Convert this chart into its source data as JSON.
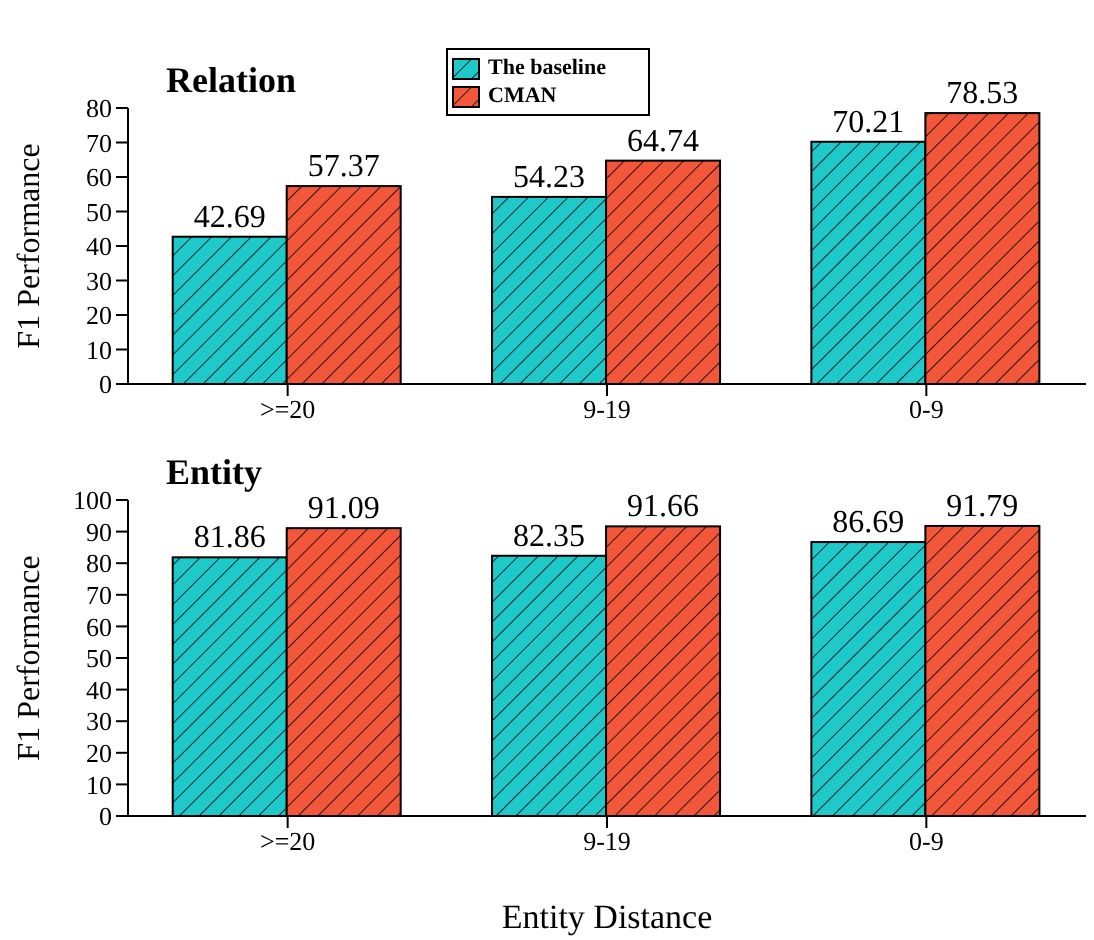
{
  "chart_data": [
    {
      "type": "bar",
      "title": "Relation",
      "ylabel": "F1 Performance",
      "categories": [
        ">=20",
        "9-19",
        "0-9"
      ],
      "series": [
        {
          "name": "The baseline",
          "color": "#1fc9c9",
          "values": [
            42.69,
            54.23,
            70.21
          ]
        },
        {
          "name": "CMAN",
          "color": "#f2573a",
          "values": [
            57.37,
            64.74,
            78.53
          ]
        }
      ],
      "ylim": [
        0,
        80
      ],
      "yticks": [
        0,
        10,
        20,
        30,
        40,
        50,
        60,
        70,
        80
      ],
      "data_labels": true,
      "legend": "top",
      "grid": false
    },
    {
      "type": "bar",
      "title": "Entity",
      "xlabel": "Entity Distance",
      "ylabel": "F1 Performance",
      "categories": [
        ">=20",
        "9-19",
        "0-9"
      ],
      "series": [
        {
          "color": "#1fc9c9",
          "values": [
            81.86,
            82.35,
            86.69
          ]
        },
        {
          "color": "#f2573a",
          "values": [
            91.09,
            91.66,
            91.79
          ]
        }
      ],
      "ylim": [
        0,
        100
      ],
      "yticks": [
        0,
        10,
        20,
        30,
        40,
        50,
        60,
        70,
        80,
        90,
        100
      ],
      "data_labels": true,
      "legend": false,
      "grid": false
    }
  ]
}
